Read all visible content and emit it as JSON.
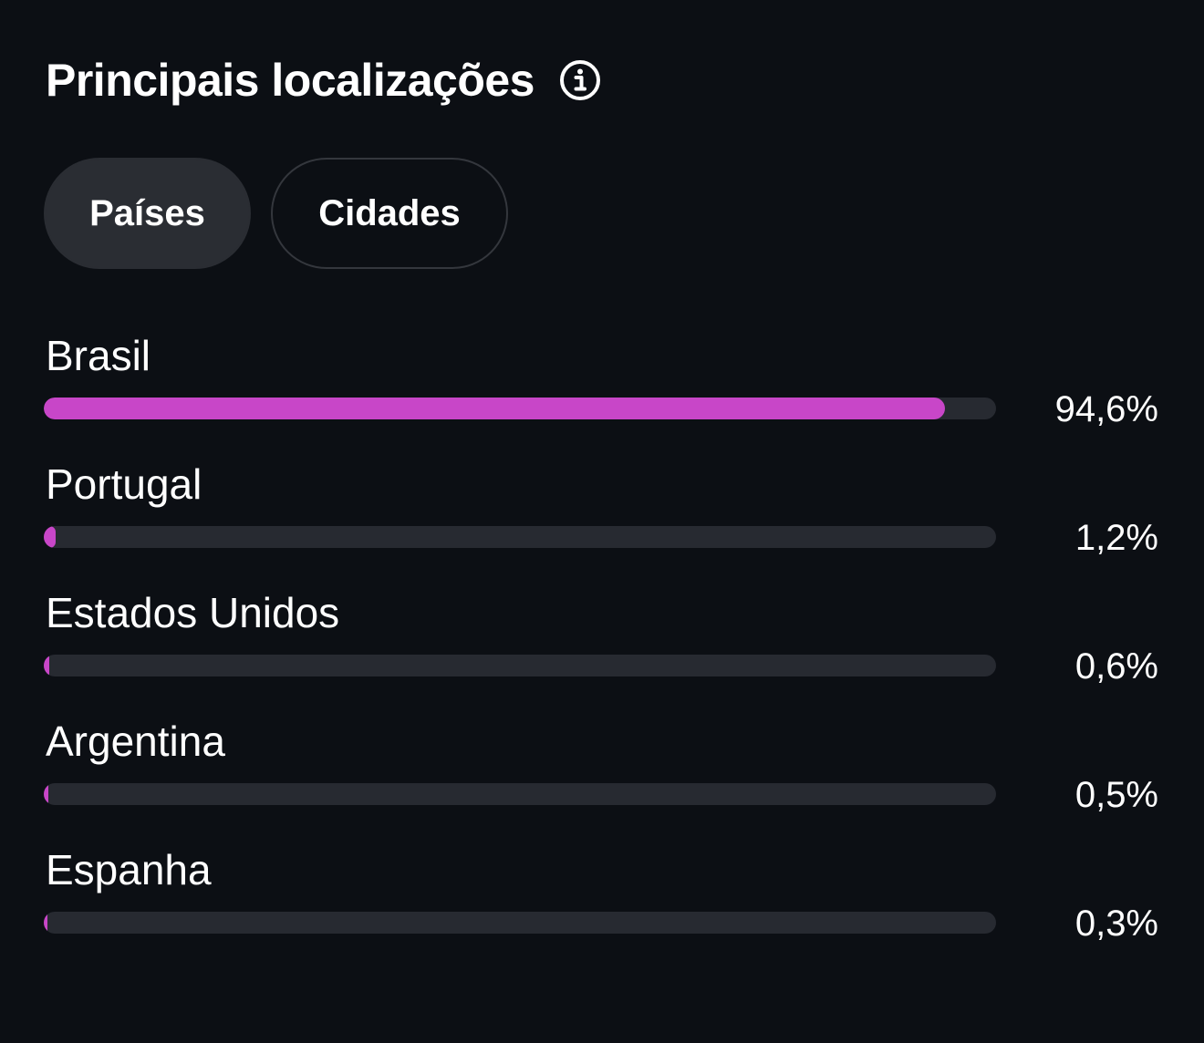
{
  "header": {
    "title": "Principais localizações",
    "info_icon": "info-circle-icon"
  },
  "tabs": [
    {
      "label": "Países",
      "active": true
    },
    {
      "label": "Cidades",
      "active": false
    }
  ],
  "colors": {
    "background": "#0c0f14",
    "bar_fill": "#c846c8",
    "bar_track": "#272a31",
    "tab_active_bg": "#2a2d33"
  },
  "locations": [
    {
      "name": "Brasil",
      "value_text": "94,6%",
      "fraction": 0.946
    },
    {
      "name": "Portugal",
      "value_text": "1,2%",
      "fraction": 0.012
    },
    {
      "name": "Estados Unidos",
      "value_text": "0,6%",
      "fraction": 0.006
    },
    {
      "name": "Argentina",
      "value_text": "0,5%",
      "fraction": 0.005
    },
    {
      "name": "Espanha",
      "value_text": "0,3%",
      "fraction": 0.003
    }
  ]
}
